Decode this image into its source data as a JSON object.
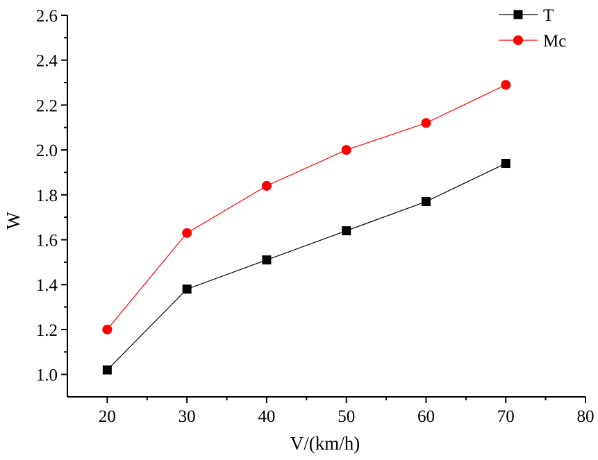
{
  "chart_data": {
    "type": "line",
    "xlabel": "V/(km/h)",
    "ylabel": "W",
    "xlim": [
      15,
      80
    ],
    "ylim": [
      0.9,
      2.6
    ],
    "x_ticks": [
      20,
      30,
      40,
      50,
      60,
      70,
      80
    ],
    "x_tick_labels": [
      "20",
      "30",
      "40",
      "50",
      "60",
      "70",
      "80"
    ],
    "y_ticks": [
      1.0,
      1.2,
      1.4,
      1.6,
      1.8,
      2.0,
      2.2,
      2.4,
      2.6
    ],
    "y_tick_labels": [
      "1.0",
      "1.2",
      "1.4",
      "1.6",
      "1.8",
      "2.0",
      "2.2",
      "2.4",
      "2.6"
    ],
    "grid": false,
    "legend_position": "top-right",
    "x": [
      20,
      30,
      40,
      50,
      60,
      70
    ],
    "series": [
      {
        "name": "T",
        "values": [
          1.02,
          1.38,
          1.51,
          1.64,
          1.77,
          1.94
        ],
        "color": "#000000",
        "marker": "square"
      },
      {
        "name": "Mc",
        "values": [
          1.2,
          1.63,
          1.84,
          2.0,
          2.12,
          2.29
        ],
        "color": "#ff0000",
        "marker": "circle"
      }
    ]
  }
}
